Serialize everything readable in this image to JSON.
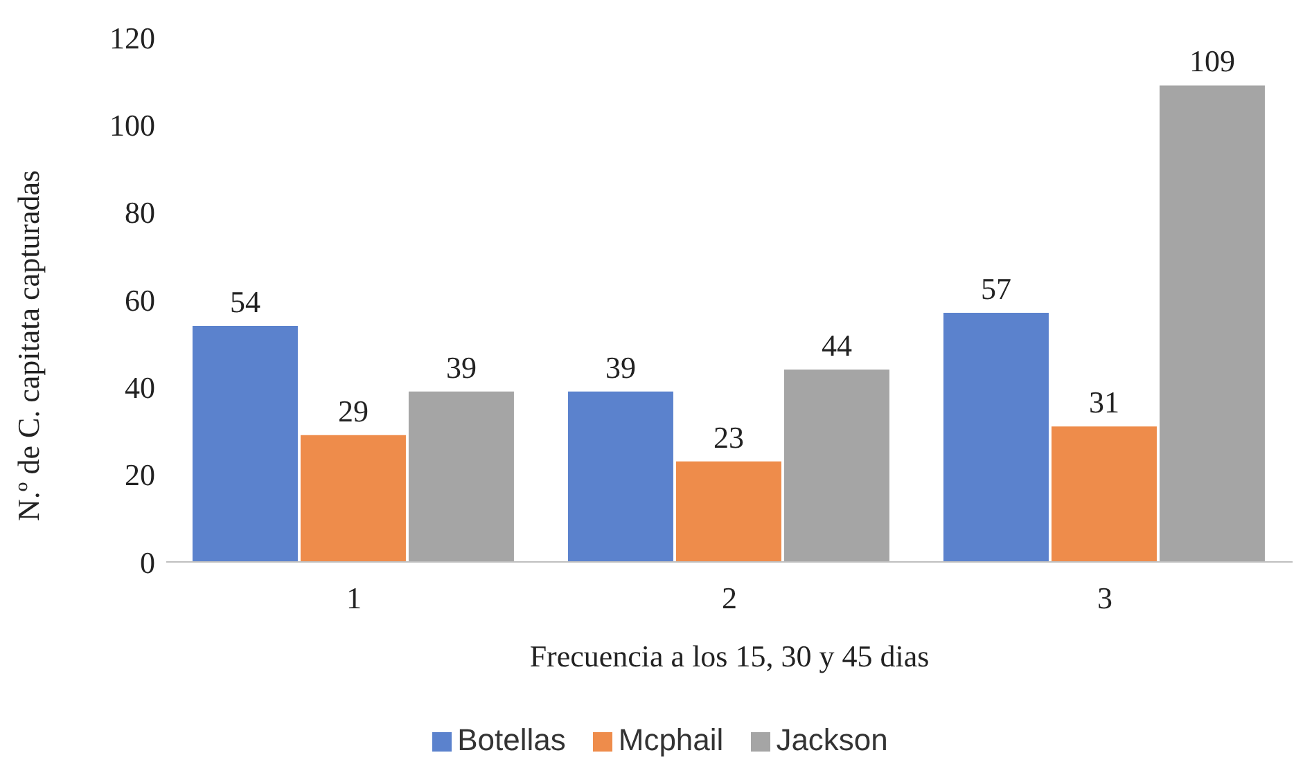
{
  "chart_data": {
    "type": "bar",
    "xlabel": "Frecuencia a los 15, 30 y 45 dias",
    "ylabel": "N.º de C. capitata capturadas",
    "categories": [
      "1",
      "2",
      "3"
    ],
    "series": [
      {
        "name": "Botellas",
        "color": "#5b82cd",
        "values": [
          54,
          39,
          57
        ]
      },
      {
        "name": "Mcphail",
        "color": "#ee8c4b",
        "values": [
          29,
          23,
          31
        ]
      },
      {
        "name": "Jackson",
        "color": "#a5a5a5",
        "values": [
          39,
          44,
          109
        ]
      }
    ],
    "ylim": [
      0,
      120
    ],
    "yticks": [
      0,
      20,
      40,
      60,
      80,
      100,
      120
    ],
    "grid": false,
    "legend": "bottom",
    "data_labels": true
  }
}
